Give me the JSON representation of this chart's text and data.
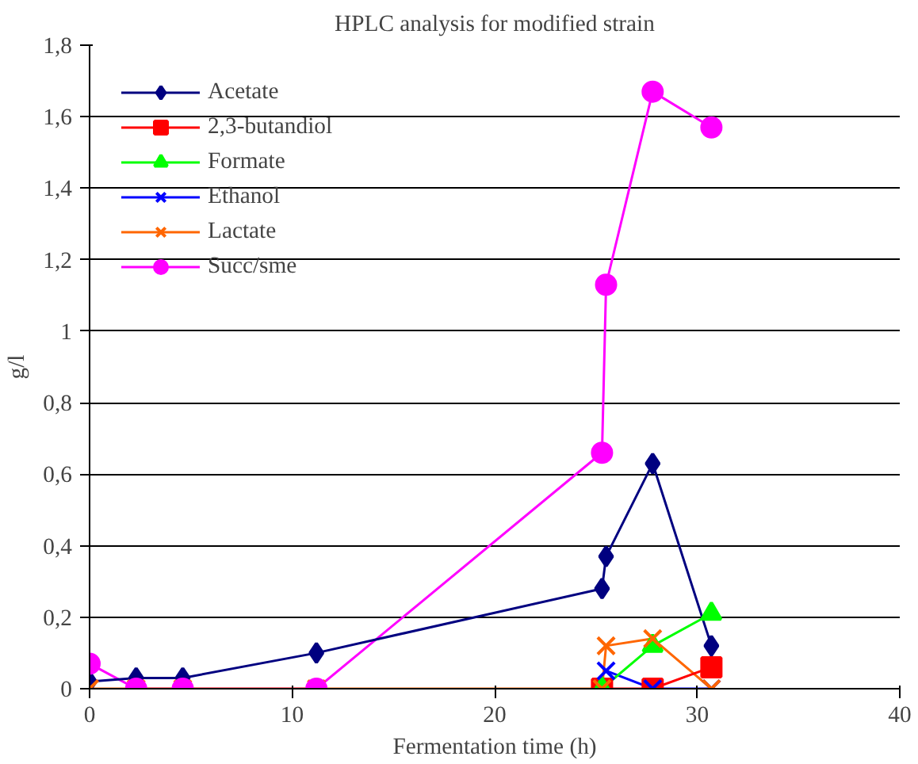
{
  "chart_data": {
    "type": "line",
    "title": "HPLC analysis for modified strain",
    "xlabel": "Fermentation time (h)",
    "ylabel": "g/l",
    "x": [
      0,
      2.3,
      4.6,
      11.2,
      25.3,
      25.5,
      27.8,
      30.7
    ],
    "xlim": [
      0,
      40
    ],
    "xticks": [
      0,
      10,
      20,
      30,
      40
    ],
    "ylim": [
      0,
      1.8
    ],
    "yticks": [
      0,
      {
        "value": 0.2,
        "label": "0,2"
      },
      {
        "value": 0.4,
        "label": "0,4"
      },
      {
        "value": 0.6,
        "label": "0,6"
      },
      {
        "value": 0.8,
        "label": "0,8"
      },
      1,
      {
        "value": 1.2,
        "label": "1,2"
      },
      {
        "value": 1.4,
        "label": "1,4"
      },
      {
        "value": 1.6,
        "label": "1,6"
      },
      {
        "value": 1.8,
        "label": "1,8"
      }
    ],
    "grid": "y",
    "legend": "top left",
    "line_style": "solid",
    "series": [
      {
        "name": "Acetate",
        "color": "#000080",
        "marker": "diamond",
        "values": [
          0.02,
          0.03,
          0.03,
          0.1,
          0.28,
          0.37,
          0.63,
          0.12
        ]
      },
      {
        "name": "2,3-butandiol",
        "color": "#ff0000",
        "marker": "square",
        "x": [
          25.3,
          27.8,
          30.7
        ],
        "values": [
          0,
          0,
          0.06
        ]
      },
      {
        "name": "Formate",
        "color": "#00ff00",
        "marker": "triangle",
        "x": [
          25.3,
          27.8,
          30.7
        ],
        "values": [
          0,
          0.12,
          0.21
        ]
      },
      {
        "name": "Ethanol",
        "color": "#0000ff",
        "marker": "cross",
        "x": [
          25.5,
          27.8,
          30.7
        ],
        "values": [
          0.05,
          0,
          0
        ]
      },
      {
        "name": "Lactate",
        "color": "#ff6600",
        "marker": "cross",
        "values": [
          0,
          0,
          0,
          0,
          0,
          0.12,
          0.14,
          0
        ]
      },
      {
        "name": "Succ/sme",
        "color": "#ff00ff",
        "marker": "circle",
        "values": [
          0.07,
          0,
          0,
          0,
          0.66,
          1.13,
          1.67,
          1.57
        ]
      }
    ]
  }
}
